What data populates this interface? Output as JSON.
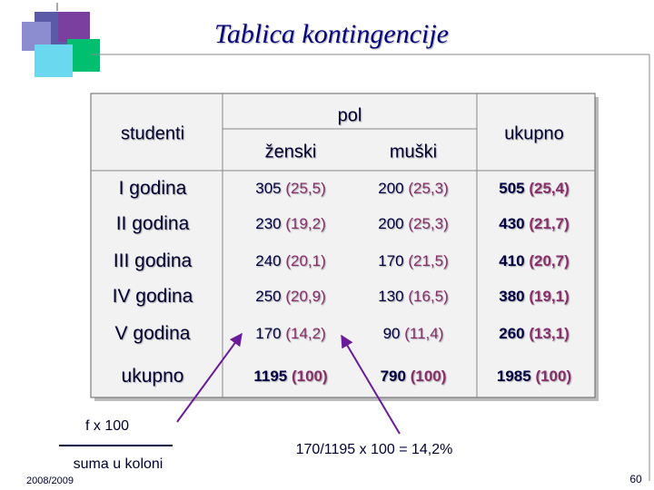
{
  "header": {
    "title": "Tablica kontingencije"
  },
  "table": {
    "columns": {
      "row_label": "studenti",
      "group": "pol",
      "sub": [
        "ženski",
        "muški"
      ],
      "total": "ukupno"
    },
    "rows": [
      {
        "label": "I godina",
        "cells": [
          {
            "n": "305",
            "p": "(25,5)"
          },
          {
            "n": "200",
            "p": "(25,3)"
          },
          {
            "n": "505",
            "p": "(25,4)"
          }
        ]
      },
      {
        "label": "II godina",
        "cells": [
          {
            "n": "230",
            "p": "(19,2)"
          },
          {
            "n": "200",
            "p": "(25,3)"
          },
          {
            "n": "430",
            "p": "(21,7)"
          }
        ]
      },
      {
        "label": "III godina",
        "cells": [
          {
            "n": "240",
            "p": "(20,1)"
          },
          {
            "n": "170",
            "p": "(21,5)"
          },
          {
            "n": "410",
            "p": "(20,7)"
          }
        ]
      },
      {
        "label": "IV godina",
        "cells": [
          {
            "n": "250",
            "p": "(20,9)"
          },
          {
            "n": "130",
            "p": "(16,5)"
          },
          {
            "n": "380",
            "p": "(19,1)"
          }
        ]
      },
      {
        "label": "V godina",
        "cells": [
          {
            "n": "170",
            "p": "(14,2)"
          },
          {
            "n": "90",
            "p": "(11,4)"
          },
          {
            "n": "260",
            "p": "(13,1)"
          }
        ]
      },
      {
        "label": "ukupno",
        "cells": [
          {
            "n": "1195",
            "p": "(100)"
          },
          {
            "n": "790",
            "p": "(100)"
          },
          {
            "n": "1985",
            "p": "(100)"
          }
        ]
      }
    ]
  },
  "notes": {
    "formula_top": "f x 100",
    "formula_bottom": "suma u koloni",
    "example": "170/1195 x 100 = 14,2%"
  },
  "footer": {
    "year": "2008/2009",
    "page": "60"
  }
}
